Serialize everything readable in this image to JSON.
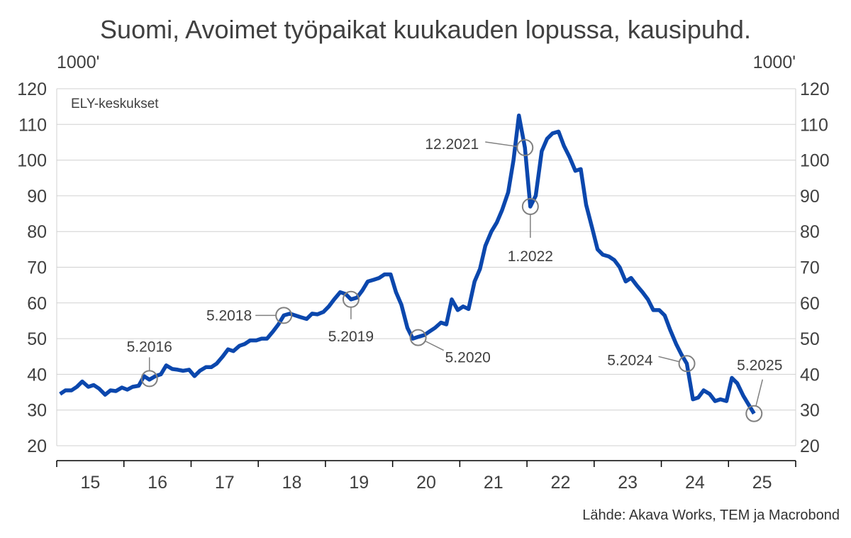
{
  "chart_data": {
    "type": "line",
    "title": "Suomi, Avoimet työpaikat kuukauden lopussa, kausipuhd.",
    "unit_left": "1000'",
    "unit_right": "1000'",
    "series_label": "ELY-keskukset",
    "source": "Lähde: Akava Works, TEM ja Macrobond",
    "ylim": [
      20,
      120
    ],
    "yticks": [
      "20",
      "30",
      "40",
      "50",
      "60",
      "70",
      "80",
      "90",
      "100",
      "110",
      "120"
    ],
    "xlim": [
      2015.0,
      2026.0
    ],
    "xticks": [
      {
        "label": "15",
        "x": 2015.5
      },
      {
        "label": "16",
        "x": 2016.5
      },
      {
        "label": "17",
        "x": 2017.5
      },
      {
        "label": "18",
        "x": 2018.5
      },
      {
        "label": "19",
        "x": 2019.5
      },
      {
        "label": "20",
        "x": 2020.5
      },
      {
        "label": "21",
        "x": 2021.5
      },
      {
        "label": "22",
        "x": 2022.5
      },
      {
        "label": "23",
        "x": 2023.5
      },
      {
        "label": "24",
        "x": 2024.5
      },
      {
        "label": "25",
        "x": 2025.5
      }
    ],
    "line_color": "#0b47ad",
    "series": [
      {
        "name": "ELY-keskukset",
        "points": [
          [
            2015.05,
            34.5
          ],
          [
            2015.13,
            35.5
          ],
          [
            2015.22,
            35.5
          ],
          [
            2015.3,
            36.5
          ],
          [
            2015.38,
            38.0
          ],
          [
            2015.47,
            36.5
          ],
          [
            2015.55,
            37.0
          ],
          [
            2015.63,
            36.0
          ],
          [
            2015.72,
            34.3
          ],
          [
            2015.8,
            35.5
          ],
          [
            2015.88,
            35.3
          ],
          [
            2015.97,
            36.3
          ],
          [
            2016.05,
            35.7
          ],
          [
            2016.13,
            36.5
          ],
          [
            2016.22,
            36.8
          ],
          [
            2016.3,
            39.5
          ],
          [
            2016.38,
            38.5
          ],
          [
            2016.47,
            39.5
          ],
          [
            2016.55,
            40.0
          ],
          [
            2016.63,
            42.5
          ],
          [
            2016.72,
            41.5
          ],
          [
            2016.8,
            41.3
          ],
          [
            2016.88,
            41.0
          ],
          [
            2016.97,
            41.3
          ],
          [
            2017.05,
            39.5
          ],
          [
            2017.13,
            41.0
          ],
          [
            2017.22,
            42.0
          ],
          [
            2017.3,
            42.0
          ],
          [
            2017.38,
            43.0
          ],
          [
            2017.47,
            45.0
          ],
          [
            2017.55,
            47.0
          ],
          [
            2017.63,
            46.5
          ],
          [
            2017.72,
            48.0
          ],
          [
            2017.8,
            48.5
          ],
          [
            2017.88,
            49.5
          ],
          [
            2017.97,
            49.5
          ],
          [
            2018.05,
            50.0
          ],
          [
            2018.13,
            50.0
          ],
          [
            2018.22,
            52.0
          ],
          [
            2018.3,
            54.0
          ],
          [
            2018.38,
            56.5
          ],
          [
            2018.47,
            57.0
          ],
          [
            2018.55,
            56.5
          ],
          [
            2018.63,
            56.0
          ],
          [
            2018.72,
            55.5
          ],
          [
            2018.8,
            57.0
          ],
          [
            2018.88,
            56.8
          ],
          [
            2018.97,
            57.5
          ],
          [
            2019.05,
            59.0
          ],
          [
            2019.13,
            61.0
          ],
          [
            2019.22,
            63.0
          ],
          [
            2019.3,
            62.5
          ],
          [
            2019.38,
            61.0
          ],
          [
            2019.47,
            61.5
          ],
          [
            2019.55,
            63.5
          ],
          [
            2019.63,
            66.0
          ],
          [
            2019.72,
            66.5
          ],
          [
            2019.8,
            67.0
          ],
          [
            2019.88,
            68.0
          ],
          [
            2019.97,
            68.0
          ],
          [
            2020.05,
            63.0
          ],
          [
            2020.13,
            59.5
          ],
          [
            2020.22,
            53.0
          ],
          [
            2020.3,
            50.0
          ],
          [
            2020.38,
            50.5
          ],
          [
            2020.47,
            51.0
          ],
          [
            2020.55,
            52.0
          ],
          [
            2020.63,
            53.0
          ],
          [
            2020.72,
            54.5
          ],
          [
            2020.8,
            54.0
          ],
          [
            2020.88,
            61.0
          ],
          [
            2020.97,
            58.0
          ],
          [
            2021.05,
            59.0
          ],
          [
            2021.13,
            58.3
          ],
          [
            2021.22,
            66.0
          ],
          [
            2021.3,
            69.5
          ],
          [
            2021.38,
            76.0
          ],
          [
            2021.47,
            80.0
          ],
          [
            2021.55,
            82.5
          ],
          [
            2021.63,
            86.0
          ],
          [
            2021.72,
            91.0
          ],
          [
            2021.8,
            100.0
          ],
          [
            2021.88,
            112.5
          ],
          [
            2021.97,
            103.5
          ],
          [
            2022.05,
            87.0
          ],
          [
            2022.13,
            90.0
          ],
          [
            2022.22,
            102.5
          ],
          [
            2022.3,
            106.0
          ],
          [
            2022.38,
            107.5
          ],
          [
            2022.47,
            108.0
          ],
          [
            2022.55,
            104.0
          ],
          [
            2022.63,
            101.0
          ],
          [
            2022.72,
            97.0
          ],
          [
            2022.8,
            97.5
          ],
          [
            2022.88,
            87.5
          ],
          [
            2022.97,
            81.0
          ],
          [
            2023.05,
            75.0
          ],
          [
            2023.13,
            73.5
          ],
          [
            2023.22,
            73.0
          ],
          [
            2023.3,
            72.0
          ],
          [
            2023.38,
            70.0
          ],
          [
            2023.47,
            66.0
          ],
          [
            2023.55,
            67.0
          ],
          [
            2023.63,
            65.0
          ],
          [
            2023.72,
            63.0
          ],
          [
            2023.8,
            61.0
          ],
          [
            2023.88,
            58.0
          ],
          [
            2023.97,
            58.0
          ],
          [
            2024.05,
            56.5
          ],
          [
            2024.13,
            52.5
          ],
          [
            2024.22,
            48.5
          ],
          [
            2024.3,
            45.5
          ],
          [
            2024.38,
            43.0
          ],
          [
            2024.47,
            33.0
          ],
          [
            2024.55,
            33.5
          ],
          [
            2024.63,
            35.5
          ],
          [
            2024.72,
            34.5
          ],
          [
            2024.8,
            32.5
          ],
          [
            2024.88,
            33.0
          ],
          [
            2024.97,
            32.5
          ],
          [
            2025.05,
            39.0
          ],
          [
            2025.13,
            37.5
          ],
          [
            2025.22,
            34.0
          ],
          [
            2025.3,
            31.5
          ],
          [
            2025.38,
            29.0
          ]
        ]
      }
    ],
    "annotations": [
      {
        "label": "5.2016",
        "x": 2016.38,
        "y": 38.8
      },
      {
        "label": "5.2018",
        "x": 2018.38,
        "y": 56.5
      },
      {
        "label": "5.2019",
        "x": 2019.38,
        "y": 61.0
      },
      {
        "label": "5.2020",
        "x": 2020.38,
        "y": 50.3
      },
      {
        "label": "12.2021",
        "x": 2021.97,
        "y": 103.5
      },
      {
        "label": "1.2022",
        "x": 2022.05,
        "y": 87.0
      },
      {
        "label": "5.2024",
        "x": 2024.38,
        "y": 43.0
      },
      {
        "label": "5.2025",
        "x": 2025.38,
        "y": 29.0
      }
    ]
  }
}
